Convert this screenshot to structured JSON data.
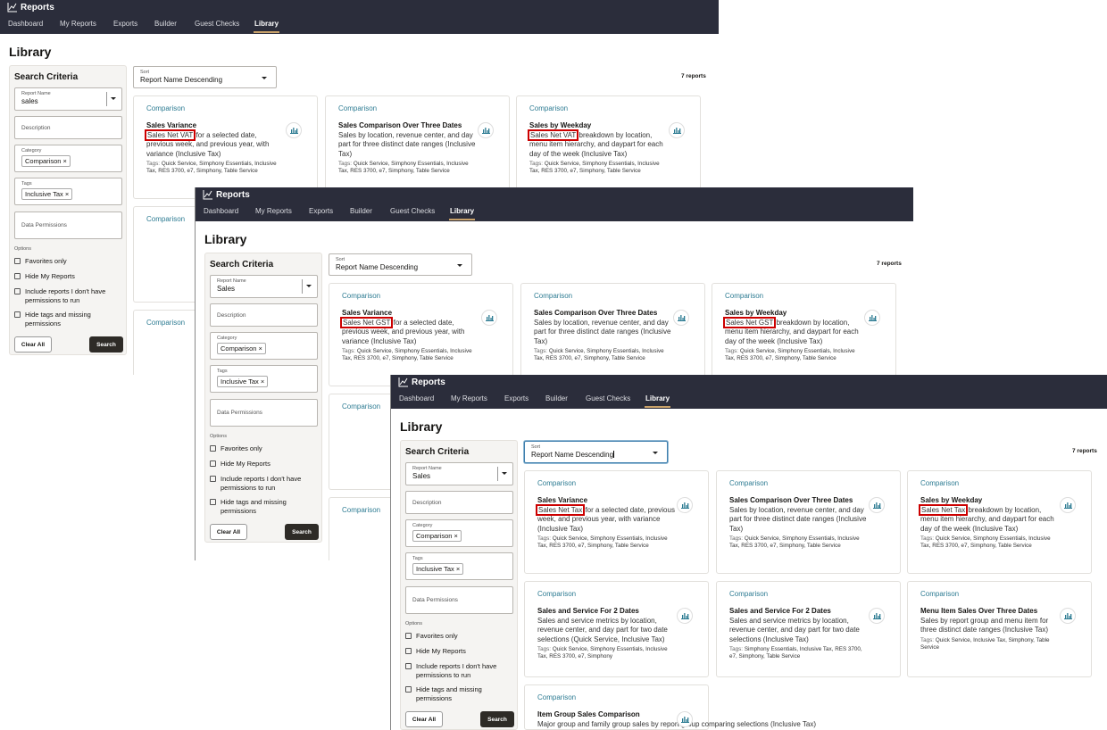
{
  "app": {
    "title": "Reports",
    "nav": [
      "Dashboard",
      "My Reports",
      "Exports",
      "Builder",
      "Guest Checks",
      "Library"
    ],
    "active_nav": "Library",
    "page_title": "Library"
  },
  "search": {
    "heading": "Search Criteria",
    "report_name_label": "Report Name",
    "description_placeholder": "Description",
    "category_label": "Category",
    "category_chip": "Comparison",
    "tags_label": "Tags",
    "tags_chip": "Inclusive Tax",
    "data_permissions_placeholder": "Data Permissions",
    "options_label": "Options",
    "options": [
      "Favorites only",
      "Hide My Reports",
      "Include reports I don't have permissions to run",
      "Hide tags and missing permissions"
    ],
    "clear_label": "Clear All",
    "search_label": "Search",
    "chip_remove": "×"
  },
  "sort": {
    "label": "Sort",
    "value": "Report Name Descending"
  },
  "count": "7 reports",
  "tags_prefix": "Tags:",
  "colors": {
    "header": "#2b2d3b",
    "accent": "#c9a26a",
    "category": "#2e7c93",
    "highlight": "#cc0000"
  },
  "cards": [
    {
      "category": "Comparison",
      "title": "Sales Variance",
      "desc_rest": "for a selected date, previous week, and previous year, with variance (Inclusive Tax)",
      "highlight": true,
      "tags": "Quick Service, Simphony Essentials, Inclusive Tax, RES 3700, e7, Simphony, Table Service"
    },
    {
      "category": "Comparison",
      "title": "Sales Comparison Over Three Dates",
      "desc": "Sales by location, revenue center, and day part for three distinct date ranges (Inclusive Tax)",
      "tags": "Quick Service, Simphony Essentials, Inclusive Tax, RES 3700, e7, Simphony, Table Service"
    },
    {
      "category": "Comparison",
      "title": "Sales by Weekday",
      "desc_rest": "breakdown by location, menu item hierarchy, and daypart for each day of the week (Inclusive Tax)",
      "highlight": true,
      "tags": "Quick Service, Simphony Essentials, Inclusive Tax, RES 3700, e7, Simphony, Table Service"
    },
    {
      "category": "Comparison",
      "title": "Sales and Service For 2 Dates",
      "desc": "Sales and service metrics by location, revenue center, and day part for two date selections (Quick Service, Inclusive Tax)",
      "tags": "Quick Service, Simphony Essentials, Inclusive Tax, RES 3700, e7, Simphony"
    },
    {
      "category": "Comparison",
      "title": "Sales and Service For 2 Dates",
      "desc": "Sales and service metrics by location, revenue center, and day part for two date selections (Inclusive Tax)",
      "tags": "Simphony Essentials, Inclusive Tax, RES 3700, e7, Simphony, Table Service"
    },
    {
      "category": "Comparison",
      "title": "Menu Item Sales Over Three Dates",
      "desc": "Sales by report group and menu item for three distinct date ranges (Inclusive Tax)",
      "tags": "Quick Service, Inclusive Tax, Simphony, Table Service"
    },
    {
      "category": "Comparison",
      "title": "Item Group Sales Comparison",
      "desc": "Major group and family group sales by report group comparing selections (Inclusive Tax)",
      "tags": ""
    }
  ],
  "panels": [
    {
      "report_name_value": "sales",
      "highlight_text": "Sales Net VAT"
    },
    {
      "report_name_value": "Sales",
      "highlight_text": "Sales Net GST"
    },
    {
      "report_name_value": "Sales",
      "highlight_text": "Sales Net Tax"
    }
  ]
}
